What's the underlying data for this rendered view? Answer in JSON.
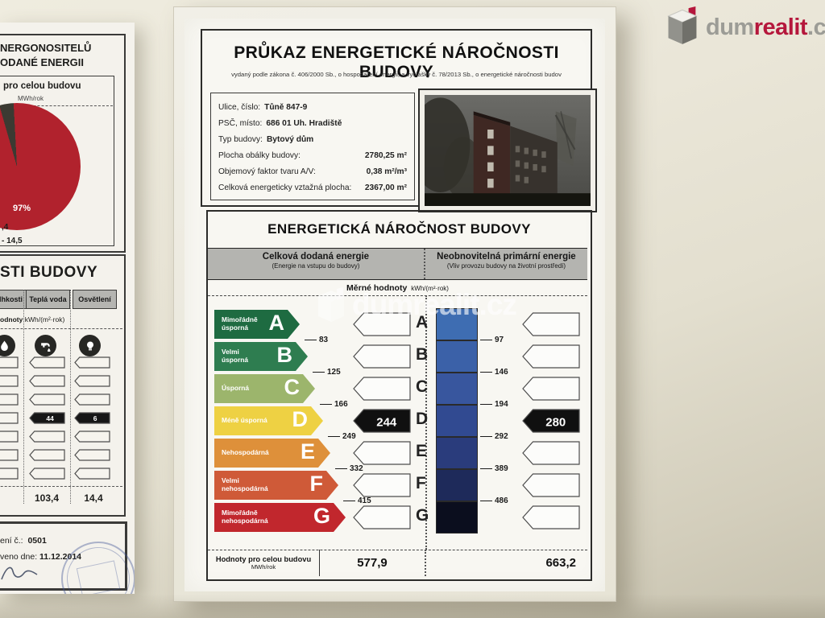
{
  "logo": {
    "part1": "dum",
    "part2": "realit",
    "part3": ".cz"
  },
  "watermark": {
    "text": "dumrealit.cz"
  },
  "left_doc": {
    "header_line1": "NERGONOSITELŮ",
    "header_line2": "ODANÉ ENERGII",
    "subbox_title": "pro celou budovu",
    "subbox_unit": "MWh/rok",
    "pie_label": "97%",
    "legend_fragment1": ",4",
    "legend_fragment2": "- 14,5",
    "section2_title": "STI BUDOVY",
    "columns": [
      "vlhkosti",
      "Teplá voda",
      "Osvětlení"
    ],
    "merne_fragment": "odnoty",
    "merne_unit": "kWh/(m²·rok)",
    "marked_values": [
      "44",
      "6"
    ],
    "totals": [
      "103,4",
      "14,4"
    ],
    "cert_no_label": "ení č.:",
    "cert_no": "0501",
    "date_label": "veno dne:",
    "date": "11.12.2014"
  },
  "certificate": {
    "title": "PRŮKAZ ENERGETICKÉ NÁROČNOSTI BUDOVY",
    "subtitle": "vydaný podle zákona č. 406/2000 Sb., o hospodaření energii, a vyhlášky č. 78/2013 Sb., o energetické náročnosti budov",
    "info": [
      {
        "label": "Ulice, číslo:",
        "value": "Tůně 847-9"
      },
      {
        "label": "PSČ, místo:",
        "value": "686 01 Uh. Hradiště"
      },
      {
        "label": "Typ budovy:",
        "value": "Bytový dům"
      },
      {
        "label": "Plocha obálky budovy:",
        "value": "2780,25 m²"
      },
      {
        "label": "Objemový faktor tvaru A/V:",
        "value": "0,38 m²/m³"
      },
      {
        "label": "Celková energeticky vztažná plocha:",
        "value": "2367,00 m²"
      }
    ],
    "section_title": "ENERGETICKÁ NÁROČNOST BUDOVY",
    "col1_title": "Celková dodaná energie",
    "col1_sub": "(Energie na vstupu do budovy)",
    "col2_title": "Neobnovitelná primární energie",
    "col2_sub": "(Vliv provozu budovy na životní prostředí)",
    "merne_label": "Měrné hodnoty",
    "merne_unit": "kWh/(m²·rok)",
    "chart_data": {
      "type": "bar",
      "classes": [
        "A",
        "B",
        "C",
        "D",
        "E",
        "F",
        "G"
      ],
      "class_labels": [
        "Mimořádně\núsporná",
        "Velmi\núsporná",
        "Úsporná",
        "Méně úsporná",
        "Nehospodárná",
        "Velmi\nnehospodárná",
        "Mimořádně\nnehospodárná"
      ],
      "class_colors": [
        "#1e6b41",
        "#2e7d50",
        "#9cb56c",
        "#eed143",
        "#de903a",
        "#cf5a38",
        "#c1272d"
      ],
      "primary_scale_colors": [
        "#3e6db2",
        "#3b61a8",
        "#38569e",
        "#314a91",
        "#2a3c7c",
        "#1e2a5a",
        "#0b0e1e"
      ],
      "delivered_thresholds": [
        83,
        125,
        166,
        249,
        332,
        415
      ],
      "primary_thresholds": [
        97,
        146,
        194,
        292,
        389,
        486
      ],
      "delivered_value": 244,
      "delivered_class": "D",
      "primary_value": 280,
      "primary_class": "D",
      "unit": "kWh/(m²·rok)",
      "building_totals": {
        "delivered": "577,9",
        "primary": "663,2",
        "unit": "MWh/rok"
      }
    },
    "bottom": {
      "label": "Hodnoty pro celou budovu",
      "unit": "MWh/rok",
      "value1": "577,9",
      "value2": "663,2"
    }
  }
}
